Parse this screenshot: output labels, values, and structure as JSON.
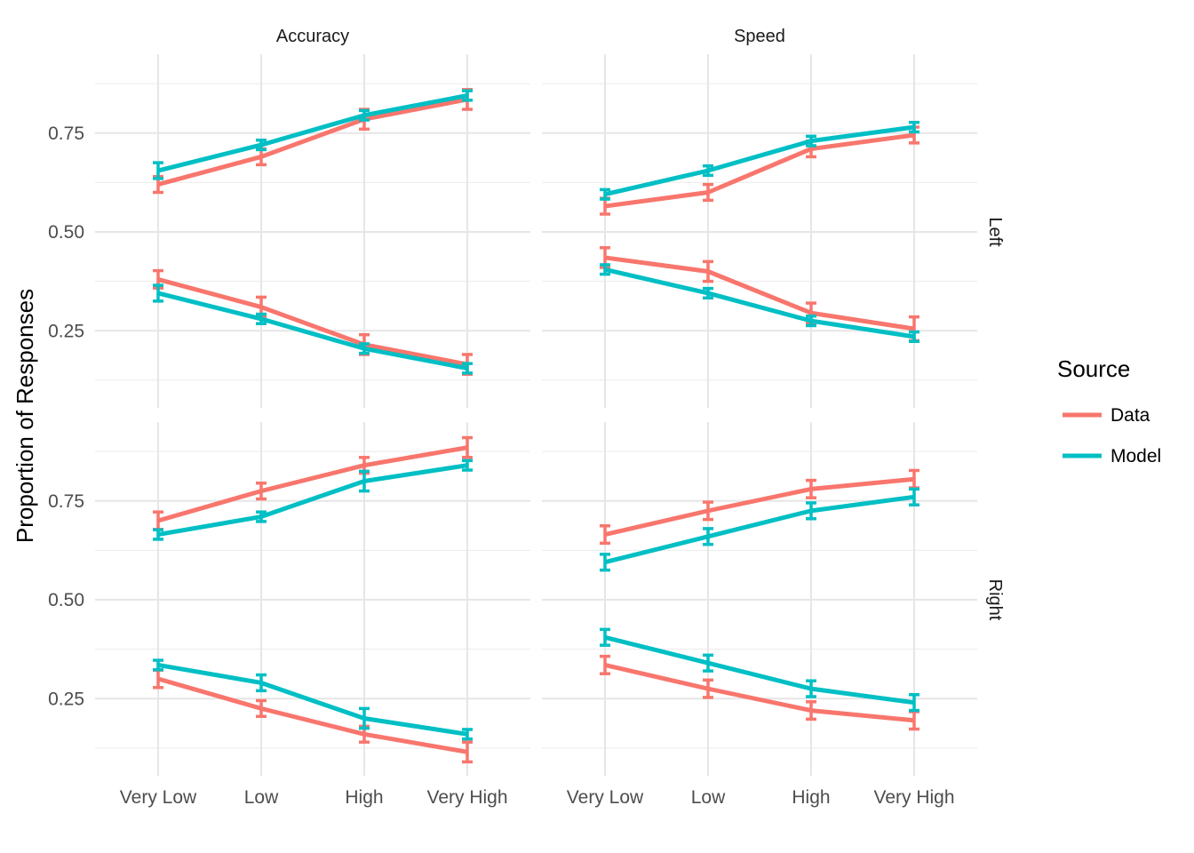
{
  "chart_data": {
    "type": "line",
    "categories": [
      "Very Low",
      "Low",
      "High",
      "Very High"
    ],
    "col_facets": [
      "Accuracy",
      "Speed"
    ],
    "row_facets": [
      "Left",
      "Right"
    ],
    "ylabel": "Proportion of Responses",
    "xlabel": "",
    "y_ticks": [
      0.25,
      0.5,
      0.75
    ],
    "y_tick_labels": [
      "0.25",
      "0.50",
      "0.75"
    ],
    "ylim": [
      0.07,
      0.955
    ],
    "grid": true,
    "legend": {
      "title": "Source",
      "position": "right",
      "items": [
        {
          "name": "Data",
          "color": "#F8766D"
        },
        {
          "name": "Model",
          "color": "#00BFC4"
        }
      ]
    },
    "panels": [
      {
        "col": "Accuracy",
        "row": "Left",
        "lines": [
          {
            "source": "Data",
            "values": [
              0.62,
              0.69,
              0.785,
              0.835
            ],
            "err": [
              0.02,
              0.02,
              0.025,
              0.025
            ]
          },
          {
            "source": "Model",
            "values": [
              0.655,
              0.72,
              0.795,
              0.845
            ],
            "err": [
              0.02,
              0.012,
              0.012,
              0.012
            ]
          },
          {
            "source": "Data",
            "values": [
              0.38,
              0.31,
              0.215,
              0.165
            ],
            "err": [
              0.022,
              0.025,
              0.025,
              0.025
            ]
          },
          {
            "source": "Model",
            "values": [
              0.345,
              0.28,
              0.205,
              0.155
            ],
            "err": [
              0.02,
              0.012,
              0.012,
              0.012
            ]
          }
        ]
      },
      {
        "col": "Speed",
        "row": "Left",
        "lines": [
          {
            "source": "Data",
            "values": [
              0.565,
              0.6,
              0.71,
              0.745
            ],
            "err": [
              0.02,
              0.02,
              0.02,
              0.02
            ]
          },
          {
            "source": "Model",
            "values": [
              0.595,
              0.655,
              0.73,
              0.765
            ],
            "err": [
              0.012,
              0.012,
              0.012,
              0.012
            ]
          },
          {
            "source": "Data",
            "values": [
              0.435,
              0.4,
              0.295,
              0.255
            ],
            "err": [
              0.025,
              0.025,
              0.025,
              0.03
            ]
          },
          {
            "source": "Model",
            "values": [
              0.405,
              0.345,
              0.275,
              0.235
            ],
            "err": [
              0.012,
              0.012,
              0.012,
              0.012
            ]
          }
        ]
      },
      {
        "col": "Accuracy",
        "row": "Right",
        "lines": [
          {
            "source": "Data",
            "values": [
              0.7,
              0.775,
              0.84,
              0.885
            ],
            "err": [
              0.022,
              0.02,
              0.02,
              0.025
            ]
          },
          {
            "source": "Model",
            "values": [
              0.665,
              0.71,
              0.8,
              0.84
            ],
            "err": [
              0.012,
              0.012,
              0.025,
              0.012
            ]
          },
          {
            "source": "Data",
            "values": [
              0.3,
              0.225,
              0.16,
              0.115
            ],
            "err": [
              0.022,
              0.02,
              0.02,
              0.025
            ]
          },
          {
            "source": "Model",
            "values": [
              0.335,
              0.29,
              0.2,
              0.16
            ],
            "err": [
              0.012,
              0.02,
              0.025,
              0.012
            ]
          }
        ]
      },
      {
        "col": "Speed",
        "row": "Right",
        "lines": [
          {
            "source": "Data",
            "values": [
              0.665,
              0.725,
              0.78,
              0.805
            ],
            "err": [
              0.022,
              0.022,
              0.022,
              0.022
            ]
          },
          {
            "source": "Model",
            "values": [
              0.595,
              0.66,
              0.725,
              0.76
            ],
            "err": [
              0.02,
              0.02,
              0.02,
              0.02
            ]
          },
          {
            "source": "Data",
            "values": [
              0.335,
              0.275,
              0.22,
              0.195
            ],
            "err": [
              0.022,
              0.022,
              0.022,
              0.022
            ]
          },
          {
            "source": "Model",
            "values": [
              0.405,
              0.34,
              0.275,
              0.24
            ],
            "err": [
              0.02,
              0.02,
              0.02,
              0.02
            ]
          }
        ]
      }
    ]
  }
}
